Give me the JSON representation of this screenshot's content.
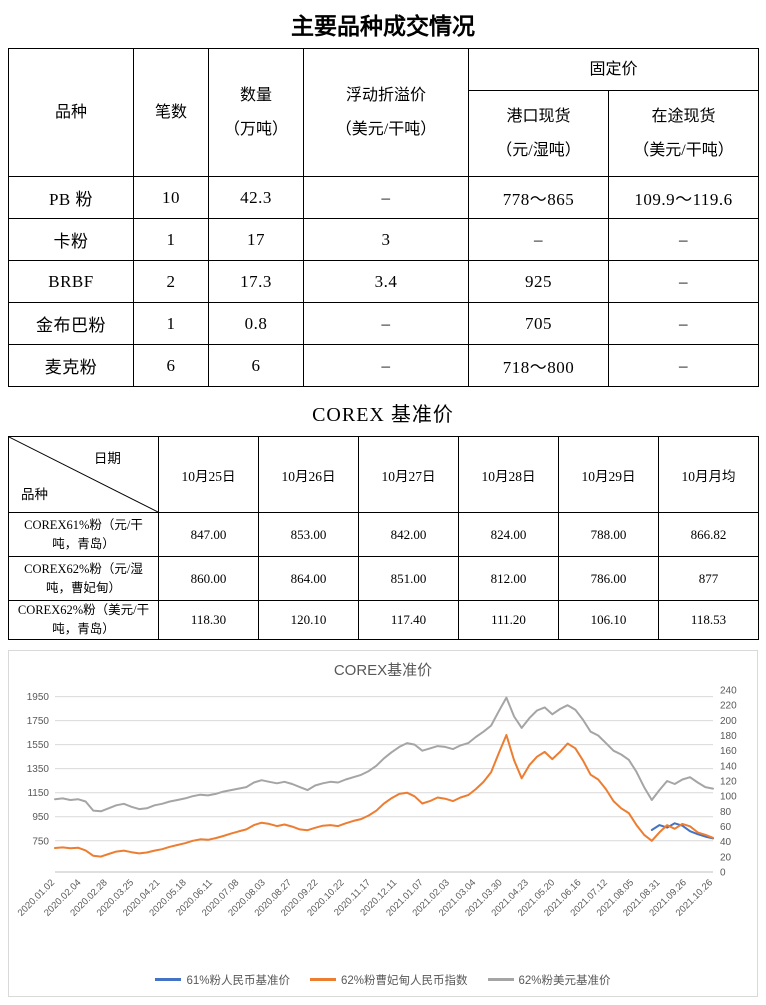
{
  "page": {
    "title": "主要品种成交情况"
  },
  "deals_table": {
    "headers": {
      "variety": "品种",
      "count": "笔数",
      "qty": {
        "l1": "数量",
        "l2": "（万吨）"
      },
      "premium": {
        "l1": "浮动折溢价",
        "l2": "（美元/干吨）"
      },
      "fixed": "固定价",
      "port": {
        "l1": "港口现货",
        "l2": "（元/湿吨）"
      },
      "transit": {
        "l1": "在途现货",
        "l2": "（美元/干吨）"
      }
    },
    "rows": [
      [
        "PB 粉",
        "10",
        "42.3",
        "–",
        "778～865",
        "109.9～119.6"
      ],
      [
        "卡粉",
        "1",
        "17",
        "3",
        "–",
        "–"
      ],
      [
        "BRBF",
        "2",
        "17.3",
        "3.4",
        "925",
        "–"
      ],
      [
        "金布巴粉",
        "1",
        "0.8",
        "–",
        "705",
        "–"
      ],
      [
        "麦克粉",
        "6",
        "6",
        "–",
        "718～800",
        "–"
      ]
    ]
  },
  "corex_title": "COREX 基准价",
  "corex_table": {
    "corner": {
      "top": "日期",
      "bottom": "品种"
    },
    "columns": [
      "10月25日",
      "10月26日",
      "10月27日",
      "10月28日",
      "10月29日",
      "10月月均"
    ],
    "rows": [
      {
        "label": "COREX61%粉（元/干吨，青岛）",
        "values": [
          "847.00",
          "853.00",
          "842.00",
          "824.00",
          "788.00",
          "866.82"
        ]
      },
      {
        "label": "COREX62%粉（元/湿吨，曹妃甸）",
        "values": [
          "860.00",
          "864.00",
          "851.00",
          "812.00",
          "786.00",
          "877"
        ]
      },
      {
        "label": "COREX62%粉（美元/干吨，青岛）",
        "values": [
          "118.30",
          "120.10",
          "117.40",
          "111.20",
          "106.10",
          "118.53"
        ]
      }
    ]
  },
  "chart_data": {
    "type": "line",
    "title": "COREX基准价",
    "grid_on": true,
    "grid_color": "#D9D9D9",
    "axis_color": "#BFBFBF",
    "legend_position": "bottom",
    "left_axis": {
      "ticks": [
        750,
        950,
        1150,
        1350,
        1550,
        1750,
        1950
      ],
      "min": 490,
      "max": 2005
    },
    "right_axis": {
      "ticks": [
        0,
        20,
        40,
        60,
        80,
        100,
        120,
        140,
        160,
        180,
        200,
        220,
        240
      ],
      "min": 0,
      "max": 240
    },
    "x_labels": [
      "2020.01.02",
      "2020.02.04",
      "2020.02.28",
      "2020.03.25",
      "2020.04.21",
      "2020.05.18",
      "2020.06.11",
      "2020.07.08",
      "2020.08.03",
      "2020.08.27",
      "2020.09.22",
      "2020.10.22",
      "2020.11.17",
      "2020.12.11",
      "2021.01.07",
      "2021.02.03",
      "2021.03.04",
      "2021.03.30",
      "2021.04.23",
      "2021.05.20",
      "2021.06.16",
      "2021.07.12",
      "2021.08.05",
      "2021.08.31",
      "2021.09.26",
      "2021.10.26"
    ],
    "x_count": 87,
    "series": [
      {
        "name": "61%粉人民币基准价",
        "color": "#4472C4",
        "axis": "left",
        "start_index": 78,
        "values": [
          840,
          880,
          860,
          895,
          875,
          830,
          805,
          785,
          770
        ]
      },
      {
        "name": "62%粉曹妃甸人民币指数",
        "color": "#ED7D31",
        "axis": "left",
        "start_index": 0,
        "values": [
          690,
          695,
          688,
          692,
          670,
          625,
          618,
          640,
          660,
          668,
          655,
          645,
          652,
          668,
          680,
          700,
          715,
          730,
          750,
          762,
          758,
          772,
          790,
          810,
          828,
          845,
          880,
          900,
          890,
          872,
          885,
          868,
          845,
          838,
          858,
          875,
          880,
          872,
          895,
          915,
          930,
          960,
          1000,
          1060,
          1105,
          1140,
          1150,
          1120,
          1060,
          1080,
          1110,
          1100,
          1080,
          1110,
          1130,
          1180,
          1240,
          1320,
          1480,
          1630,
          1420,
          1270,
          1380,
          1450,
          1490,
          1430,
          1490,
          1560,
          1520,
          1420,
          1300,
          1260,
          1180,
          1080,
          1020,
          980,
          880,
          800,
          750,
          820,
          880,
          850,
          890,
          870,
          820,
          800,
          775
        ]
      },
      {
        "name": "62%粉美元基准价",
        "color": "#A5A5A5",
        "axis": "right",
        "start_index": 0,
        "values": [
          96,
          97,
          95,
          96,
          93,
          81,
          80,
          84,
          88,
          90,
          86,
          83,
          84,
          88,
          90,
          93,
          95,
          97,
          100,
          102,
          101,
          103,
          106,
          108,
          110,
          112,
          118,
          121,
          119,
          117,
          119,
          116,
          112,
          108,
          114,
          117,
          119,
          118,
          122,
          125,
          128,
          133,
          140,
          150,
          158,
          165,
          170,
          168,
          160,
          163,
          166,
          165,
          162,
          167,
          170,
          178,
          185,
          193,
          212,
          230,
          205,
          190,
          203,
          213,
          217,
          208,
          215,
          220,
          214,
          201,
          185,
          180,
          170,
          160,
          155,
          148,
          132,
          112,
          95,
          108,
          120,
          116,
          122,
          125,
          118,
          112,
          110
        ]
      }
    ]
  }
}
